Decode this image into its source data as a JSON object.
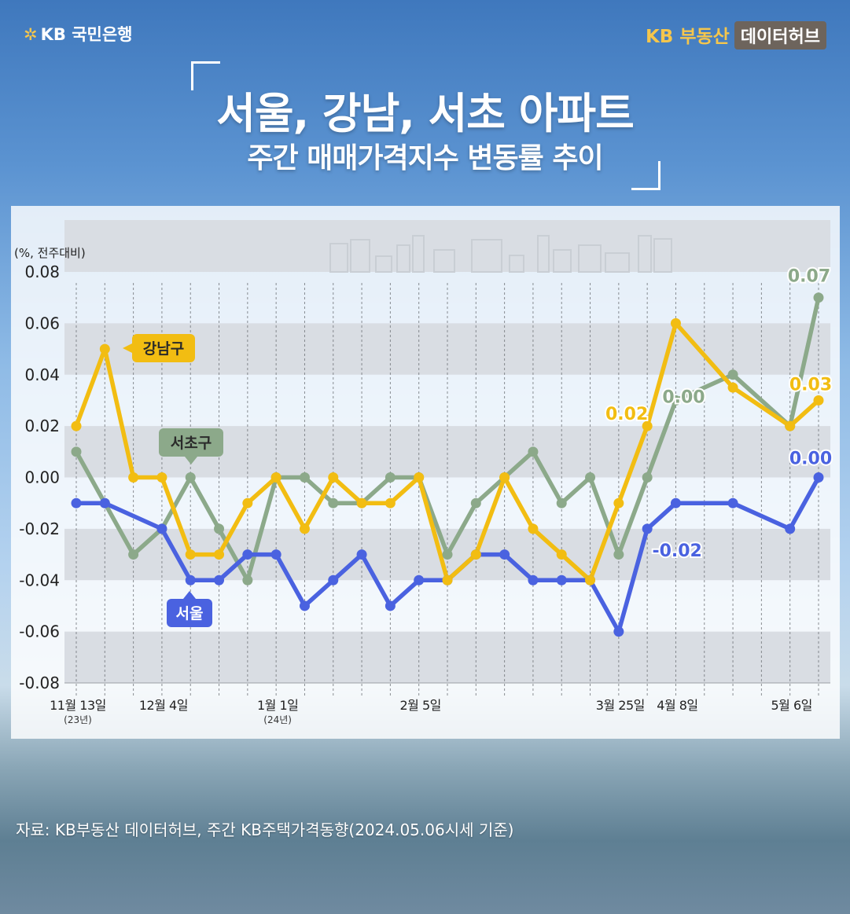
{
  "brand": {
    "bank_name": "KB 국민은행",
    "service_name": "KB 부동산",
    "service_tag": "데이터허브"
  },
  "title": {
    "line1": "서울, 강남, 서초 아파트",
    "line2": "주간 매매가격지수 변동률 추이"
  },
  "source": "자료: KB부동산 데이터허브, 주간 KB주택가격동향(2024.05.06시세 기준)",
  "colors": {
    "seoul": "#4a62e0",
    "gangnam": "#f2bd12",
    "seocho": "#8ca98a",
    "accent": "#f5c64c"
  },
  "chart_data": {
    "type": "line",
    "ylabel": "(%, 전주대비)",
    "ylim": [
      -0.08,
      0.08
    ],
    "yticks": [
      "0.08",
      "0.06",
      "0.04",
      "0.02",
      "0.00",
      "-0.02",
      "-0.04",
      "-0.06",
      "-0.08"
    ],
    "x_labels": [
      {
        "index": 0,
        "label": "11월 13일",
        "sub": "(23년)"
      },
      {
        "index": 3,
        "label": "12월 4일",
        "sub": ""
      },
      {
        "index": 7,
        "label": "1월 1일",
        "sub": "(24년)"
      },
      {
        "index": 12,
        "label": "2월 5일",
        "sub": ""
      },
      {
        "index": 19,
        "label": "3월 25일",
        "sub": ""
      },
      {
        "index": 21,
        "label": "4월 8일",
        "sub": ""
      },
      {
        "index": 25,
        "label": "5월 6일",
        "sub": ""
      }
    ],
    "series": [
      {
        "name": "서울",
        "color": "#4a62e0",
        "points": [
          [
            0,
            -0.01
          ],
          [
            1,
            -0.01
          ],
          [
            3,
            -0.02
          ],
          [
            4,
            -0.04
          ],
          [
            5,
            -0.04
          ],
          [
            6,
            -0.03
          ],
          [
            7,
            -0.03
          ],
          [
            8,
            -0.05
          ],
          [
            9,
            -0.04
          ],
          [
            10,
            -0.03
          ],
          [
            11,
            -0.05
          ],
          [
            12,
            -0.04
          ],
          [
            13,
            -0.04
          ],
          [
            14,
            -0.03
          ],
          [
            15,
            -0.03
          ],
          [
            16,
            -0.04
          ],
          [
            17,
            -0.04
          ],
          [
            18,
            -0.04
          ],
          [
            19,
            -0.06
          ],
          [
            20,
            -0.02
          ],
          [
            21,
            -0.01
          ],
          [
            23,
            -0.01
          ],
          [
            25,
            -0.02
          ],
          [
            26,
            0.0
          ]
        ]
      },
      {
        "name": "강남구",
        "color": "#f2bd12",
        "points": [
          [
            0,
            0.02
          ],
          [
            1,
            0.05
          ],
          [
            2,
            0.0
          ],
          [
            3,
            0.0
          ],
          [
            4,
            -0.03
          ],
          [
            5,
            -0.03
          ],
          [
            6,
            -0.01
          ],
          [
            7,
            0.0
          ],
          [
            8,
            -0.02
          ],
          [
            9,
            0.0
          ],
          [
            10,
            -0.01
          ],
          [
            11,
            -0.01
          ],
          [
            12,
            0.0
          ],
          [
            13,
            -0.04
          ],
          [
            14,
            -0.03
          ],
          [
            15,
            0.0
          ],
          [
            16,
            -0.02
          ],
          [
            17,
            -0.03
          ],
          [
            18,
            -0.04
          ],
          [
            19,
            -0.01
          ],
          [
            20,
            0.02
          ],
          [
            21,
            0.06
          ],
          [
            23,
            0.035
          ],
          [
            25,
            0.02
          ],
          [
            26,
            0.03
          ]
        ]
      },
      {
        "name": "서초구",
        "color": "#8ca98a",
        "points": [
          [
            0,
            0.01
          ],
          [
            1,
            -0.01
          ],
          [
            2,
            -0.03
          ],
          [
            3,
            -0.02
          ],
          [
            4,
            0.0
          ],
          [
            5,
            -0.02
          ],
          [
            6,
            -0.04
          ],
          [
            7,
            0.0
          ],
          [
            8,
            0.0
          ],
          [
            9,
            -0.01
          ],
          [
            10,
            -0.01
          ],
          [
            11,
            0.0
          ],
          [
            12,
            0.0
          ],
          [
            13,
            -0.03
          ],
          [
            14,
            -0.01
          ],
          [
            15,
            0.0
          ],
          [
            16,
            0.01
          ],
          [
            17,
            -0.01
          ],
          [
            18,
            0.0
          ],
          [
            19,
            -0.03
          ],
          [
            20,
            0.0
          ],
          [
            21,
            0.03
          ],
          [
            23,
            0.04
          ],
          [
            25,
            0.02
          ],
          [
            26,
            0.07
          ]
        ]
      }
    ],
    "series_labels": [
      {
        "series": "강남구",
        "text": "강남구"
      },
      {
        "series": "서초구",
        "text": "서초구"
      },
      {
        "series": "서울",
        "text": "서울"
      }
    ],
    "annotations": [
      {
        "series": "강남구",
        "index": 20,
        "text": "0.02"
      },
      {
        "series": "서초구",
        "index": 21,
        "text": "0.00"
      },
      {
        "series": "서울",
        "index": 20,
        "text": "-0.02"
      },
      {
        "series": "서초구",
        "index": 26,
        "text": "0.07"
      },
      {
        "series": "강남구",
        "index": 26,
        "text": "0.03"
      },
      {
        "series": "서울",
        "index": 26,
        "text": "0.00"
      }
    ]
  }
}
